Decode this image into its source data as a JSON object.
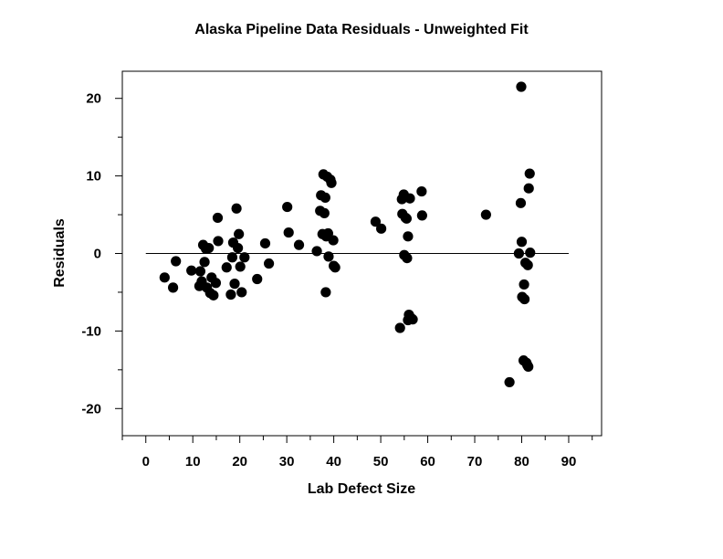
{
  "chart_data": {
    "type": "scatter",
    "title": "Alaska Pipeline Data Residuals - Unweighted Fit",
    "xlabel": "Lab Defect Size",
    "ylabel": "Residuals",
    "xlim": [
      -5,
      97
    ],
    "ylim": [
      -23.5,
      23.5
    ],
    "x_ticks": [
      0,
      10,
      20,
      30,
      40,
      50,
      60,
      70,
      80,
      90
    ],
    "x_minor_ticks": [
      -5,
      5,
      15,
      25,
      35,
      45,
      55,
      65,
      75,
      85,
      95
    ],
    "y_ticks": [
      -20,
      -10,
      0,
      10,
      20
    ],
    "y_minor_ticks": [
      -15,
      -5,
      5,
      15
    ],
    "grid": false,
    "reference_line": {
      "y": 0,
      "x_from": 0,
      "x_to": 90,
      "color": "#000000"
    },
    "marker_color": "#000000",
    "series": [
      {
        "points": [
          [
            4.0,
            -3.1
          ],
          [
            5.8,
            -4.4
          ],
          [
            6.4,
            -1.0
          ],
          [
            9.7,
            -2.2
          ],
          [
            11.4,
            -4.2
          ],
          [
            11.6,
            -2.3
          ],
          [
            11.9,
            -3.6
          ],
          [
            12.2,
            1.1
          ],
          [
            12.5,
            -1.1
          ],
          [
            12.8,
            0.6
          ],
          [
            13.0,
            -4.4
          ],
          [
            13.4,
            0.7
          ],
          [
            13.7,
            -5.1
          ],
          [
            14.0,
            -3.1
          ],
          [
            14.4,
            -5.4
          ],
          [
            14.9,
            -3.8
          ],
          [
            15.3,
            4.6
          ],
          [
            15.4,
            1.6
          ],
          [
            17.2,
            -1.8
          ],
          [
            18.1,
            -5.3
          ],
          [
            18.4,
            -0.5
          ],
          [
            18.6,
            1.4
          ],
          [
            18.9,
            -3.9
          ],
          [
            19.3,
            5.8
          ],
          [
            19.6,
            0.7
          ],
          [
            19.8,
            2.5
          ],
          [
            20.1,
            -1.7
          ],
          [
            20.4,
            -5.0
          ],
          [
            21.0,
            -0.5
          ],
          [
            23.7,
            -3.3
          ],
          [
            25.4,
            1.3
          ],
          [
            26.2,
            -1.3
          ],
          [
            30.1,
            6.0
          ],
          [
            30.4,
            2.7
          ],
          [
            32.6,
            1.1
          ],
          [
            36.4,
            0.3
          ],
          [
            37.1,
            5.5
          ],
          [
            37.3,
            7.5
          ],
          [
            37.6,
            2.5
          ],
          [
            37.8,
            10.2
          ],
          [
            38.0,
            5.2
          ],
          [
            38.2,
            7.2
          ],
          [
            38.3,
            -5.0
          ],
          [
            38.4,
            2.2
          ],
          [
            38.6,
            9.9
          ],
          [
            38.8,
            2.6
          ],
          [
            38.9,
            -0.4
          ],
          [
            39.3,
            9.5
          ],
          [
            39.5,
            9.1
          ],
          [
            39.9,
            1.7
          ],
          [
            40.0,
            -1.6
          ],
          [
            40.3,
            -1.8
          ],
          [
            48.9,
            4.1
          ],
          [
            50.1,
            3.2
          ],
          [
            54.1,
            -9.6
          ],
          [
            54.5,
            7.0
          ],
          [
            54.6,
            5.1
          ],
          [
            54.9,
            7.6
          ],
          [
            55.0,
            -0.2
          ],
          [
            55.3,
            4.6
          ],
          [
            55.5,
            4.5
          ],
          [
            55.6,
            -0.6
          ],
          [
            55.8,
            -8.6
          ],
          [
            55.8,
            2.2
          ],
          [
            56.0,
            -7.9
          ],
          [
            56.2,
            7.1
          ],
          [
            56.4,
            -8.3
          ],
          [
            56.8,
            -8.5
          ],
          [
            58.7,
            8.0
          ],
          [
            58.8,
            4.9
          ],
          [
            72.4,
            5.0
          ],
          [
            77.4,
            -16.6
          ],
          [
            79.4,
            0.0
          ],
          [
            79.9,
            21.5
          ],
          [
            79.8,
            6.5
          ],
          [
            80.0,
            1.5
          ],
          [
            80.1,
            -5.6
          ],
          [
            80.4,
            -13.8
          ],
          [
            80.5,
            -4.0
          ],
          [
            80.6,
            -5.9
          ],
          [
            80.8,
            -1.2
          ],
          [
            81.0,
            -14.1
          ],
          [
            81.2,
            -14.4
          ],
          [
            81.3,
            -1.5
          ],
          [
            81.4,
            -14.6
          ],
          [
            81.5,
            8.4
          ],
          [
            81.7,
            10.3
          ],
          [
            81.8,
            0.1
          ]
        ]
      }
    ]
  }
}
